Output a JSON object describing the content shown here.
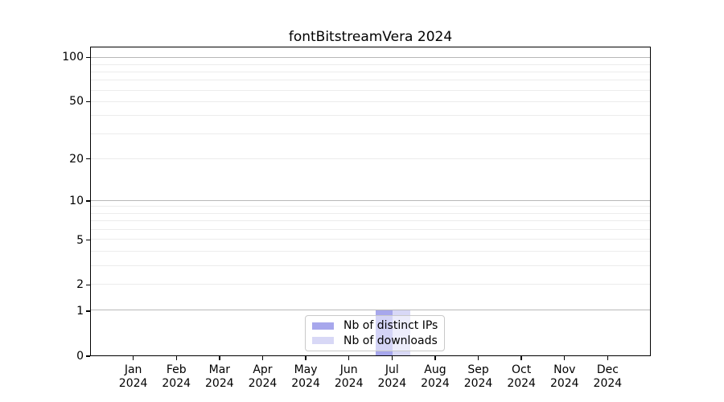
{
  "chart_data": {
    "type": "bar",
    "title": "fontBitstreamVera 2024",
    "x_axis": {
      "months": [
        "Jan",
        "Feb",
        "Mar",
        "Apr",
        "May",
        "Jun",
        "Jul",
        "Aug",
        "Sep",
        "Oct",
        "Nov",
        "Dec"
      ],
      "year_label": "2024",
      "xlim_months": 13
    },
    "y_axis": {
      "scale": "log1p",
      "major_ticks": [
        0,
        1,
        2,
        5,
        10,
        20,
        50,
        100
      ],
      "decade_gridlines": [
        1,
        10,
        100
      ],
      "light_gridlines": [
        2,
        5,
        20,
        50
      ],
      "minor_gridlines": [
        3,
        4,
        6,
        7,
        8,
        9,
        30,
        40,
        60,
        70,
        80,
        90
      ],
      "top_value": 118
    },
    "series": [
      {
        "name": "Nb of distinct IPs",
        "color": "#a7a7ec",
        "values": [
          0,
          0,
          0,
          0,
          0,
          0,
          1,
          0,
          0,
          0,
          0,
          0
        ]
      },
      {
        "name": "Nb of downloads",
        "color": "#d8d8f6",
        "values": [
          0,
          0,
          0,
          0,
          0,
          0,
          1,
          0,
          0,
          0,
          0,
          0
        ]
      }
    ],
    "legend": {
      "position": "lower center"
    },
    "grid": true
  },
  "colors": {
    "background": "#ffffff",
    "axis": "#000000",
    "text": "#000000",
    "decade_gridline": "#b8b8b8",
    "light_gridline": "#ececec",
    "legend_border": "#c9c9c9"
  }
}
